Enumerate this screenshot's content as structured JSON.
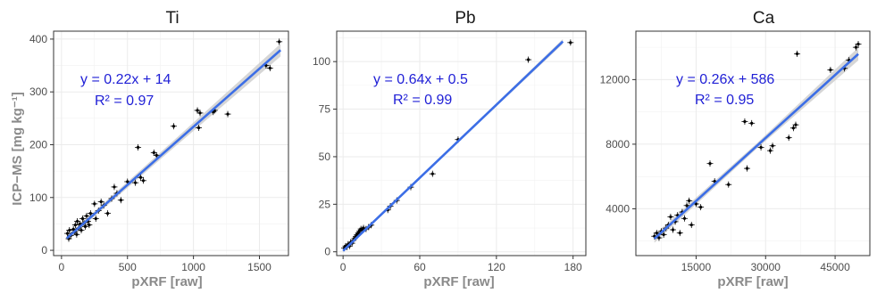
{
  "figure": {
    "ylabel": "ICP−MS [mg kg⁻¹]",
    "xlabel": "pXRF [raw]",
    "colors": {
      "fit_line": "#3c6ee6",
      "confidence_band": "#cfcfcf",
      "equation_text": "#1f1fd6",
      "points": "#000000",
      "grid": "#ebebeb",
      "panel_border": "#333333"
    }
  },
  "chart_data": [
    {
      "type": "scatter",
      "title": "Ti",
      "xlabel": "pXRF [raw]",
      "ylabel": "ICP−MS [mg kg⁻¹]",
      "xlim": [
        -60,
        1720
      ],
      "ylim": [
        -10,
        415
      ],
      "xticks": [
        0,
        500,
        1000,
        1500
      ],
      "yticks": [
        0,
        100,
        200,
        300,
        400
      ],
      "grid": true,
      "fit": {
        "slope": 0.22,
        "intercept": 14,
        "x_range": [
          40,
          1660
        ],
        "band_halfwidth": [
          4,
          7,
          12
        ]
      },
      "equation": "y = 0.22x + 14",
      "r2": "R² = 0.97",
      "points": [
        [
          45,
          32
        ],
        [
          55,
          22
        ],
        [
          60,
          38
        ],
        [
          70,
          28
        ],
        [
          90,
          40
        ],
        [
          100,
          35
        ],
        [
          105,
          48
        ],
        [
          115,
          30
        ],
        [
          120,
          55
        ],
        [
          130,
          42
        ],
        [
          140,
          50
        ],
        [
          150,
          38
        ],
        [
          160,
          60
        ],
        [
          170,
          52
        ],
        [
          180,
          45
        ],
        [
          190,
          65
        ],
        [
          200,
          55
        ],
        [
          210,
          48
        ],
        [
          220,
          70
        ],
        [
          250,
          88
        ],
        [
          260,
          60
        ],
        [
          280,
          75
        ],
        [
          300,
          92
        ],
        [
          320,
          85
        ],
        [
          350,
          70
        ],
        [
          380,
          98
        ],
        [
          400,
          120
        ],
        [
          420,
          108
        ],
        [
          450,
          95
        ],
        [
          500,
          130
        ],
        [
          560,
          128
        ],
        [
          580,
          195
        ],
        [
          600,
          138
        ],
        [
          620,
          132
        ],
        [
          700,
          185
        ],
        [
          720,
          180
        ],
        [
          850,
          235
        ],
        [
          1030,
          265
        ],
        [
          1040,
          232
        ],
        [
          1050,
          260
        ],
        [
          1150,
          262
        ],
        [
          1160,
          265
        ],
        [
          1260,
          258
        ],
        [
          1550,
          350
        ],
        [
          1580,
          345
        ],
        [
          1650,
          395
        ]
      ]
    },
    {
      "type": "scatter",
      "title": "Pb",
      "xlabel": "pXRF [raw]",
      "ylabel": "",
      "xlim": [
        -5,
        190
      ],
      "ylim": [
        -2,
        116
      ],
      "xticks": [
        0,
        60,
        120,
        180
      ],
      "yticks": [
        0,
        25,
        50,
        75,
        100
      ],
      "grid": true,
      "fit": {
        "slope": 0.64,
        "intercept": 0.5,
        "x_range": [
          0,
          172
        ],
        "band_halfwidth": [
          0.6,
          0.5,
          1.3
        ]
      },
      "equation": "y = 0.64x + 0.5",
      "r2": "R² = 0.99",
      "points": [
        [
          1,
          2
        ],
        [
          2,
          3
        ],
        [
          3,
          2.5
        ],
        [
          4,
          4
        ],
        [
          5,
          3
        ],
        [
          6,
          5
        ],
        [
          7,
          4.5
        ],
        [
          8,
          6
        ],
        [
          9,
          7
        ],
        [
          10,
          8
        ],
        [
          11,
          9
        ],
        [
          12,
          10
        ],
        [
          13,
          11
        ],
        [
          14,
          12
        ],
        [
          15,
          11.5
        ],
        [
          16,
          12.5
        ],
        [
          18,
          12
        ],
        [
          20,
          13
        ],
        [
          22,
          14
        ],
        [
          35,
          22
        ],
        [
          37,
          24
        ],
        [
          42,
          27
        ],
        [
          53,
          34
        ],
        [
          70,
          41
        ],
        [
          90,
          59
        ],
        [
          145,
          101
        ],
        [
          178,
          110
        ]
      ]
    },
    {
      "type": "scatter",
      "title": "Ca",
      "xlabel": "pXRF [raw]",
      "ylabel": "",
      "xlim": [
        2000,
        52500
      ],
      "ylim": [
        1100,
        15000
      ],
      "xticks": [
        15000,
        30000,
        45000
      ],
      "yticks": [
        4000,
        8000,
        12000
      ],
      "grid": true,
      "fit": {
        "slope": 0.26,
        "intercept": 586,
        "x_range": [
          6000,
          50000
        ],
        "band_halfwidth": [
          250,
          160,
          400
        ]
      },
      "equation": "y = 0.26x + 586",
      "r2": "R² = 0.95",
      "points": [
        [
          6000,
          2300
        ],
        [
          6500,
          2500
        ],
        [
          7000,
          2200
        ],
        [
          7500,
          2600
        ],
        [
          8000,
          2400
        ],
        [
          8500,
          2800
        ],
        [
          9000,
          3000
        ],
        [
          9500,
          3500
        ],
        [
          10000,
          2700
        ],
        [
          10500,
          3200
        ],
        [
          11000,
          3600
        ],
        [
          11500,
          2500
        ],
        [
          12000,
          3800
        ],
        [
          12500,
          3400
        ],
        [
          13000,
          4200
        ],
        [
          13500,
          4500
        ],
        [
          14000,
          3000
        ],
        [
          15000,
          4300
        ],
        [
          16000,
          4100
        ],
        [
          18000,
          6800
        ],
        [
          19000,
          5700
        ],
        [
          22000,
          5500
        ],
        [
          25500,
          9400
        ],
        [
          26000,
          6500
        ],
        [
          27000,
          9300
        ],
        [
          29000,
          7800
        ],
        [
          31000,
          7600
        ],
        [
          31500,
          7900
        ],
        [
          35000,
          8400
        ],
        [
          36000,
          9000
        ],
        [
          36500,
          9200
        ],
        [
          36800,
          13600
        ],
        [
          44000,
          12600
        ],
        [
          47000,
          12700
        ],
        [
          48000,
          13200
        ],
        [
          49500,
          14000
        ],
        [
          50000,
          14200
        ]
      ]
    }
  ]
}
